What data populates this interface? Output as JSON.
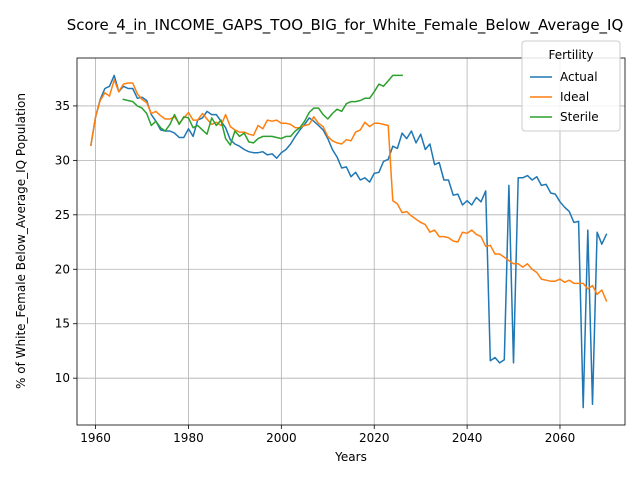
{
  "chart_data": {
    "type": "line",
    "title": "Score_4_in_INCOME_GAPS_TOO_BIG_for_White_Female_Below_Average_IQ",
    "xlabel": "Years",
    "ylabel": "% of White_Female Below_Average_IQ Population",
    "xlim": [
      1956,
      2074
    ],
    "ylim": [
      5.7,
      39.4
    ],
    "xticks": [
      1960,
      1980,
      2000,
      2020,
      2040,
      2060
    ],
    "yticks": [
      10,
      15,
      20,
      25,
      30,
      35
    ],
    "grid": true,
    "legend": {
      "title": "Fertility",
      "placement": "top-right"
    },
    "series": [
      {
        "name": "Actual",
        "color": "#1f77b4",
        "x": [
          1959,
          1960,
          1961,
          1962,
          1963,
          1964,
          1965,
          1966,
          1967,
          1968,
          1969,
          1970,
          1971,
          1972,
          1973,
          1974,
          1975,
          1976,
          1977,
          1978,
          1979,
          1980,
          1981,
          1982,
          1983,
          1984,
          1985,
          1986,
          1987,
          1988,
          1989,
          1990,
          1991,
          1992,
          1993,
          1994,
          1995,
          1996,
          1997,
          1998,
          1999,
          2000,
          2001,
          2002,
          2003,
          2004,
          2005,
          2006,
          2007,
          2008,
          2009,
          2010,
          2011,
          2012,
          2013,
          2014,
          2015,
          2016,
          2017,
          2018,
          2019,
          2020,
          2021,
          2022,
          2023,
          2024,
          2025,
          2026,
          2027,
          2028,
          2029,
          2030,
          2031,
          2032,
          2033,
          2034,
          2035,
          2036,
          2037,
          2038,
          2039,
          2040,
          2041,
          2042,
          2043,
          2044,
          2045,
          2046,
          2047,
          2048,
          2049,
          2050,
          2051,
          2052,
          2053,
          2054,
          2055,
          2056,
          2057,
          2058,
          2059,
          2060,
          2061,
          2062,
          2063,
          2064,
          2065,
          2066,
          2067,
          2068,
          2069,
          2070
        ],
        "values": [
          31.4,
          34.0,
          35.6,
          36.6,
          36.8,
          37.8,
          36.3,
          36.8,
          36.6,
          36.6,
          35.7,
          35.8,
          35.5,
          34.2,
          33.6,
          32.8,
          32.7,
          32.7,
          32.5,
          32.1,
          32.1,
          32.9,
          32.2,
          33.7,
          33.9,
          34.5,
          34.2,
          34.2,
          33.6,
          33.0,
          31.9,
          31.5,
          31.3,
          31.0,
          30.8,
          30.7,
          30.7,
          30.8,
          30.5,
          30.6,
          30.2,
          30.7,
          31.0,
          31.5,
          32.2,
          32.8,
          33.3,
          33.9,
          33.6,
          33.2,
          32.8,
          32.0,
          31.0,
          30.3,
          29.3,
          29.4,
          28.5,
          28.9,
          28.2,
          28.4,
          28.0,
          28.8,
          28.9,
          29.9,
          30.1,
          31.3,
          31.1,
          32.5,
          32.0,
          32.7,
          31.6,
          32.4,
          31.0,
          31.5,
          29.6,
          29.8,
          28.2,
          28.2,
          26.8,
          26.9,
          25.9,
          26.3,
          25.9,
          26.6,
          26.2,
          27.2,
          11.6,
          11.9,
          11.4,
          11.7,
          27.7,
          11.4,
          28.4,
          28.4,
          28.6,
          28.2,
          28.5,
          27.7,
          27.8,
          27.0,
          26.9,
          26.2,
          25.7,
          25.3,
          24.3,
          24.4,
          7.3,
          23.6,
          7.6,
          23.4,
          22.3,
          23.2
        ]
      },
      {
        "name": "Ideal",
        "color": "#ff7f0e",
        "x": [
          1959,
          1960,
          1961,
          1962,
          1963,
          1964,
          1965,
          1966,
          1967,
          1968,
          1969,
          1970,
          1971,
          1972,
          1973,
          1974,
          1975,
          1976,
          1977,
          1978,
          1979,
          1980,
          1981,
          1982,
          1983,
          1984,
          1985,
          1986,
          1987,
          1988,
          1989,
          1990,
          1991,
          1992,
          1993,
          1994,
          1995,
          1996,
          1997,
          1998,
          1999,
          2000,
          2001,
          2002,
          2003,
          2004,
          2005,
          2006,
          2007,
          2008,
          2009,
          2010,
          2011,
          2012,
          2013,
          2014,
          2015,
          2016,
          2017,
          2018,
          2019,
          2020,
          2021,
          2022,
          2023,
          2024,
          2025,
          2026,
          2027,
          2028,
          2029,
          2030,
          2031,
          2032,
          2033,
          2034,
          2035,
          2036,
          2037,
          2038,
          2039,
          2040,
          2041,
          2042,
          2043,
          2044,
          2045,
          2046,
          2047,
          2048,
          2049,
          2050,
          2051,
          2052,
          2053,
          2054,
          2055,
          2056,
          2057,
          2058,
          2059,
          2060,
          2061,
          2062,
          2063,
          2064,
          2065,
          2066,
          2067,
          2068,
          2069,
          2070
        ],
        "values": [
          31.4,
          34.0,
          35.5,
          36.2,
          35.9,
          37.4,
          36.3,
          37.0,
          37.1,
          37.1,
          36.1,
          35.6,
          35.3,
          34.3,
          34.5,
          34.1,
          33.8,
          33.8,
          34.0,
          33.4,
          33.9,
          34.4,
          33.7,
          33.7,
          34.3,
          33.8,
          33.3,
          33.5,
          33.2,
          34.2,
          33.1,
          32.8,
          32.6,
          32.6,
          32.4,
          32.3,
          33.2,
          32.9,
          33.7,
          33.6,
          33.7,
          33.4,
          33.4,
          33.3,
          33.0,
          33.0,
          33.2,
          33.3,
          34.0,
          33.4,
          33.1,
          32.2,
          31.8,
          31.6,
          31.5,
          31.9,
          31.8,
          32.6,
          32.8,
          33.5,
          33.1,
          33.4,
          33.4,
          33.3,
          33.2,
          26.3,
          26.0,
          25.2,
          25.3,
          24.9,
          24.6,
          24.3,
          24.1,
          23.4,
          23.6,
          23.0,
          23.0,
          22.9,
          22.6,
          22.5,
          23.4,
          23.3,
          23.6,
          23.2,
          23.0,
          22.1,
          22.2,
          21.4,
          21.4,
          21.1,
          20.8,
          20.5,
          20.5,
          20.2,
          20.5,
          20.0,
          19.7,
          19.1,
          19.0,
          18.9,
          18.9,
          19.1,
          18.8,
          19.0,
          18.7,
          18.7,
          18.7,
          18.2,
          18.5,
          17.7,
          18.1,
          17.1
        ]
      },
      {
        "name": "Sterile",
        "color": "#2ca02c",
        "x": [
          1966,
          1967,
          1968,
          1969,
          1970,
          1971,
          1972,
          1973,
          1974,
          1975,
          1976,
          1977,
          1978,
          1979,
          1980,
          1981,
          1982,
          1983,
          1984,
          1985,
          1986,
          1987,
          1988,
          1989,
          1990,
          1991,
          1992,
          1993,
          1994,
          1995,
          1996,
          1997,
          1998,
          1999,
          2000,
          2001,
          2002,
          2003,
          2004,
          2005,
          2006,
          2007,
          2008,
          2009,
          2010,
          2011,
          2012,
          2013,
          2014,
          2015,
          2016,
          2017,
          2018,
          2019,
          2020,
          2021,
          2022,
          2023,
          2024,
          2025,
          2026
        ],
        "values": [
          35.6,
          35.5,
          35.4,
          35.0,
          34.8,
          34.3,
          33.2,
          33.6,
          33.0,
          32.7,
          33.3,
          34.2,
          33.3,
          34.0,
          33.9,
          33.0,
          33.2,
          32.8,
          32.4,
          33.9,
          33.2,
          33.7,
          32.0,
          31.4,
          32.7,
          32.2,
          32.5,
          31.7,
          31.6,
          32.0,
          32.2,
          32.2,
          32.2,
          32.1,
          32.0,
          32.2,
          32.2,
          32.7,
          33.0,
          33.6,
          34.4,
          34.8,
          34.8,
          34.2,
          33.8,
          34.3,
          34.7,
          34.5,
          35.2,
          35.4,
          35.4,
          35.5,
          35.7,
          35.7,
          36.3,
          37.0,
          36.8,
          37.3,
          37.8,
          37.8,
          37.8
        ]
      }
    ]
  }
}
